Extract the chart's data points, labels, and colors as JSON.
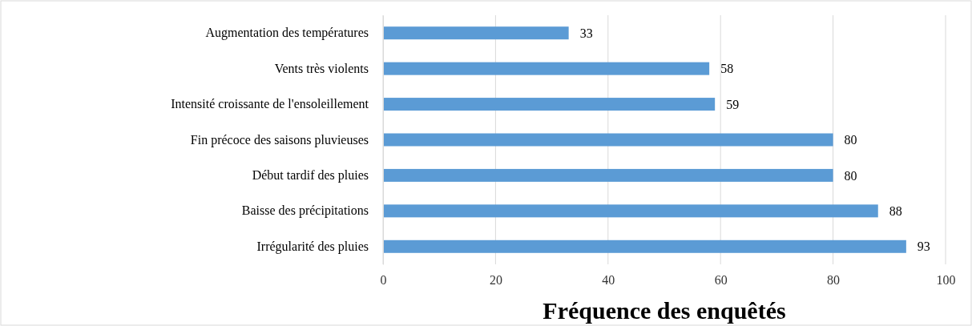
{
  "chart_data": {
    "type": "bar",
    "orientation": "horizontal",
    "xlabel": "Fréquence des enquêtés",
    "categories": [
      "Augmentation des températures",
      "Vents très violents",
      "Intensité croissante de l'ensoleillement",
      "Fin précoce des saisons pluvieuses",
      "Début tardif des pluies",
      "Baisse des précipitations",
      "Irrégularité des pluies"
    ],
    "values": [
      33,
      58,
      59,
      80,
      80,
      88,
      93
    ],
    "color": "#5b9bd5",
    "xlim": [
      0,
      100
    ],
    "xticks": [
      0,
      20,
      40,
      60,
      80,
      100
    ],
    "grid": "x",
    "data_labels": true
  }
}
